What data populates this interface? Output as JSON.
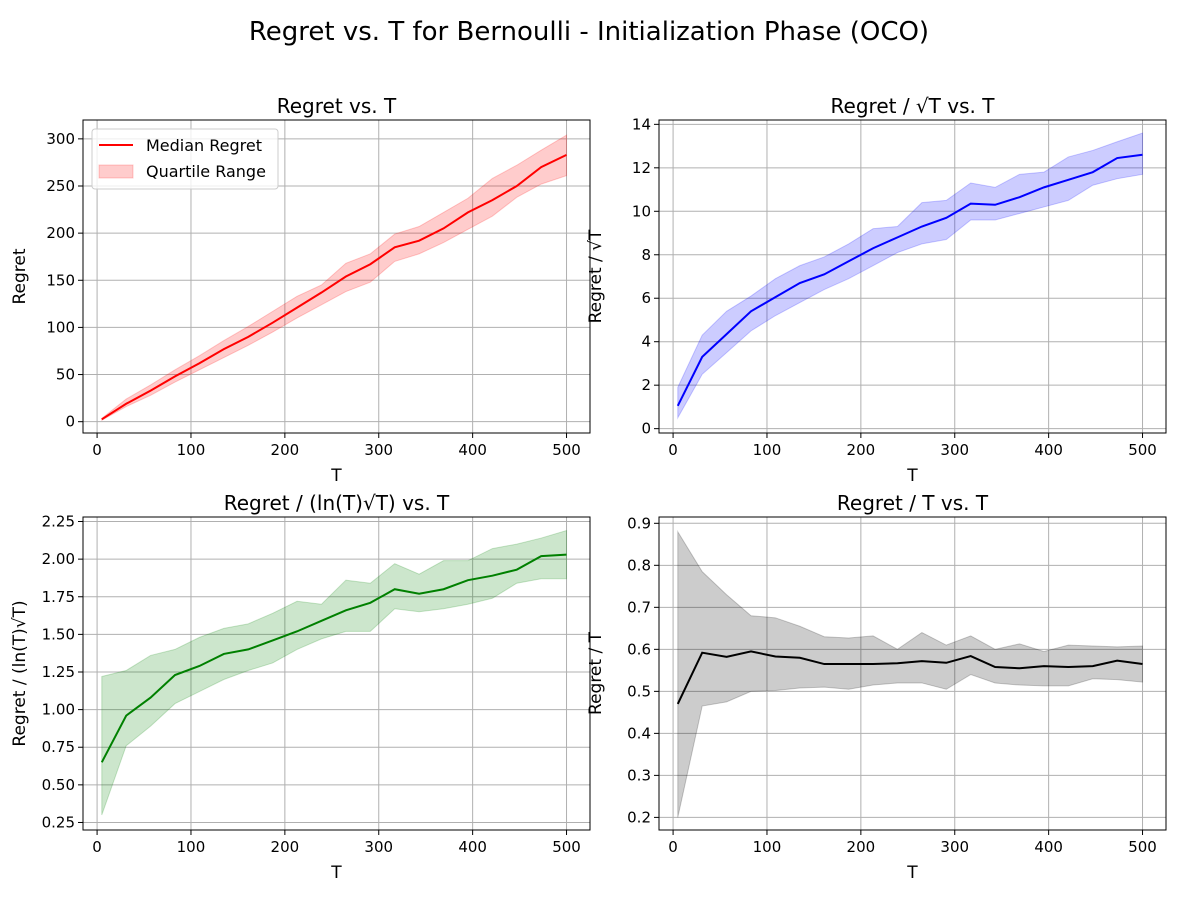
{
  "figure": {
    "title": "Regret vs. T for Bernoulli - Initialization Phase (OCO)"
  },
  "chart_data": [
    {
      "type": "line",
      "title": "Regret vs. T",
      "xlabel": "T",
      "ylabel": "Regret",
      "xlim": [
        -15,
        525
      ],
      "ylim": [
        -12,
        320
      ],
      "xticks": [
        0,
        100,
        200,
        300,
        400,
        500
      ],
      "yticks": [
        0,
        50,
        100,
        150,
        200,
        250,
        300
      ],
      "grid": true,
      "legend": {
        "placement": "top-left",
        "entries": [
          "Median Regret",
          "Quartile Range"
        ]
      },
      "line_color": "#ff0000",
      "fill_color": "#ff0000",
      "x": [
        5,
        31,
        57,
        83,
        109,
        135,
        161,
        187,
        213,
        239,
        265,
        291,
        317,
        343,
        369,
        395,
        421,
        447,
        473,
        500
      ],
      "series": [
        {
          "name": "Median Regret",
          "values": [
            2.5,
            19,
            33,
            48,
            62,
            77,
            90,
            105,
            121,
            137,
            154,
            167,
            185,
            192,
            205,
            222,
            235,
            250,
            270,
            283
          ]
        },
        {
          "name": "Quartile Range",
          "lower": [
            1.5,
            16,
            28,
            42,
            55,
            68,
            81,
            95,
            110,
            124,
            138,
            148,
            170,
            178,
            190,
            204,
            218,
            238,
            252,
            261
          ],
          "upper": [
            3.5,
            24,
            39,
            55,
            70,
            86,
            101,
            117,
            133,
            145,
            168,
            178,
            199,
            207,
            222,
            237,
            258,
            272,
            288,
            304
          ]
        }
      ]
    },
    {
      "type": "line",
      "title": "Regret / √T vs. T",
      "xlabel": "T",
      "ylabel": "Regret / √T",
      "xlim": [
        -15,
        525
      ],
      "ylim": [
        -0.2,
        14.2
      ],
      "xticks": [
        0,
        100,
        200,
        300,
        400,
        500
      ],
      "yticks": [
        0,
        2,
        4,
        6,
        8,
        10,
        12,
        14
      ],
      "grid": true,
      "line_color": "#0000ff",
      "fill_color": "#0000ff",
      "x": [
        5,
        31,
        57,
        83,
        109,
        135,
        161,
        187,
        213,
        239,
        265,
        291,
        317,
        343,
        369,
        395,
        421,
        447,
        473,
        500
      ],
      "series": [
        {
          "name": "median",
          "values": [
            1.05,
            3.3,
            4.35,
            5.4,
            6.05,
            6.7,
            7.1,
            7.7,
            8.3,
            8.8,
            9.3,
            9.7,
            10.35,
            10.3,
            10.65,
            11.1,
            11.45,
            11.8,
            12.45,
            12.6
          ]
        },
        {
          "name": "quartile",
          "lower": [
            0.5,
            2.5,
            3.5,
            4.5,
            5.2,
            5.8,
            6.4,
            6.9,
            7.5,
            8.1,
            8.5,
            8.7,
            9.6,
            9.6,
            9.9,
            10.2,
            10.5,
            11.2,
            11.5,
            11.7
          ],
          "upper": [
            1.9,
            4.3,
            5.4,
            6.1,
            6.9,
            7.5,
            7.9,
            8.5,
            9.2,
            9.3,
            10.4,
            10.5,
            11.3,
            11.1,
            11.7,
            11.8,
            12.5,
            12.8,
            13.2,
            13.6
          ]
        }
      ]
    },
    {
      "type": "line",
      "title": "Regret / (ln(T)√T) vs. T",
      "xlabel": "T",
      "ylabel": "Regret / (ln(T)√T)",
      "xlim": [
        -15,
        525
      ],
      "ylim": [
        0.2,
        2.28
      ],
      "xticks": [
        0,
        100,
        200,
        300,
        400,
        500
      ],
      "yticks": [
        0.25,
        0.5,
        0.75,
        1.0,
        1.25,
        1.5,
        1.75,
        2.0,
        2.25
      ],
      "ytick_labels": [
        "0.25",
        "0.50",
        "0.75",
        "1.00",
        "1.25",
        "1.50",
        "1.75",
        "2.00",
        "2.25"
      ],
      "grid": true,
      "line_color": "#008000",
      "fill_color": "#008000",
      "x": [
        5,
        31,
        57,
        83,
        109,
        135,
        161,
        187,
        213,
        239,
        265,
        291,
        317,
        343,
        369,
        395,
        421,
        447,
        473,
        500
      ],
      "series": [
        {
          "name": "median",
          "values": [
            0.65,
            0.96,
            1.08,
            1.23,
            1.29,
            1.37,
            1.4,
            1.46,
            1.52,
            1.59,
            1.66,
            1.71,
            1.8,
            1.77,
            1.8,
            1.86,
            1.89,
            1.93,
            2.02,
            2.03
          ]
        },
        {
          "name": "quartile",
          "lower": [
            0.3,
            0.76,
            0.89,
            1.04,
            1.12,
            1.2,
            1.26,
            1.31,
            1.4,
            1.47,
            1.52,
            1.52,
            1.67,
            1.65,
            1.67,
            1.7,
            1.74,
            1.84,
            1.87,
            1.87
          ],
          "upper": [
            1.22,
            1.26,
            1.36,
            1.4,
            1.48,
            1.54,
            1.57,
            1.64,
            1.72,
            1.7,
            1.86,
            1.84,
            1.97,
            1.9,
            1.99,
            1.99,
            2.07,
            2.1,
            2.14,
            2.19
          ]
        }
      ]
    },
    {
      "type": "line",
      "title": "Regret / T vs. T",
      "xlabel": "T",
      "ylabel": "Regret / T",
      "xlim": [
        -15,
        525
      ],
      "ylim": [
        0.17,
        0.915
      ],
      "xticks": [
        0,
        100,
        200,
        300,
        400,
        500
      ],
      "yticks": [
        0.2,
        0.3,
        0.4,
        0.5,
        0.6,
        0.7,
        0.8,
        0.9
      ],
      "ytick_labels": [
        "0.2",
        "0.3",
        "0.4",
        "0.5",
        "0.6",
        "0.7",
        "0.8",
        "0.9"
      ],
      "grid": true,
      "line_color": "#000000",
      "fill_color": "#000000",
      "x": [
        5,
        31,
        57,
        83,
        109,
        135,
        161,
        187,
        213,
        239,
        265,
        291,
        317,
        343,
        369,
        395,
        421,
        447,
        473,
        500
      ],
      "series": [
        {
          "name": "median",
          "values": [
            0.47,
            0.592,
            0.582,
            0.595,
            0.583,
            0.58,
            0.565,
            0.565,
            0.565,
            0.567,
            0.572,
            0.568,
            0.584,
            0.558,
            0.555,
            0.56,
            0.558,
            0.56,
            0.573,
            0.565
          ]
        },
        {
          "name": "quartile",
          "lower": [
            0.2,
            0.465,
            0.475,
            0.5,
            0.502,
            0.508,
            0.51,
            0.505,
            0.515,
            0.52,
            0.52,
            0.505,
            0.54,
            0.52,
            0.515,
            0.513,
            0.513,
            0.53,
            0.528,
            0.522
          ],
          "upper": [
            0.88,
            0.785,
            0.73,
            0.68,
            0.675,
            0.655,
            0.63,
            0.627,
            0.632,
            0.6,
            0.64,
            0.61,
            0.632,
            0.6,
            0.613,
            0.595,
            0.61,
            0.608,
            0.606,
            0.608
          ]
        }
      ]
    }
  ]
}
